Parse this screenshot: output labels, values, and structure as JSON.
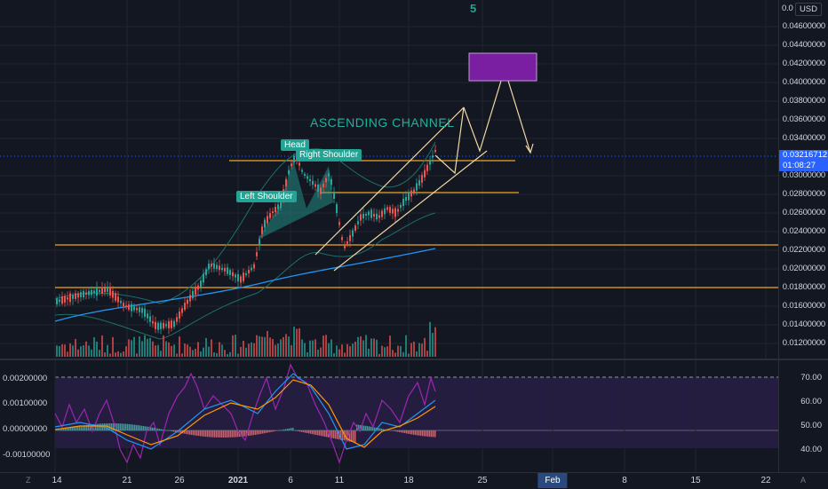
{
  "top_marker": "5",
  "annotations": {
    "channel_label": "ASCENDING CHANNEL",
    "head": "Head",
    "left_shoulder": "Left Shoulder",
    "right_shoulder": "Right Shoulder"
  },
  "price_axis": {
    "currency_button": "USD",
    "top_label": "0.0",
    "labels": [
      "0.04600000",
      "0.04400000",
      "0.04200000",
      "0.04000000",
      "0.03800000",
      "0.03600000",
      "0.03400000",
      "0.03000000",
      "0.02800000",
      "0.02600000",
      "0.02400000",
      "0.02200000",
      "0.02000000",
      "0.01800000",
      "0.01600000",
      "0.01400000",
      "0.01200000"
    ],
    "current_price": "0.03216712",
    "countdown": "01:08:27"
  },
  "oscillator": {
    "left_labels": [
      "0.00200000",
      "0.00100000",
      "0.00000000",
      "-0.00100000"
    ],
    "right_labels": [
      "70.00",
      "60.00",
      "50.00",
      "40.00"
    ]
  },
  "time_axis": {
    "labels": [
      "14",
      "21",
      "26",
      "2021",
      "6",
      "11",
      "18",
      "25",
      "Feb",
      "8",
      "15",
      "22"
    ],
    "zoom_button": "Z",
    "auto_button": "A"
  },
  "colors": {
    "background": "#131722",
    "up_candle": "#26a69a",
    "down_candle": "#ef5350",
    "hline": "#f5a623",
    "channel": "#f0d9a0",
    "target_box": "#7b1fa2",
    "rsi": "#9c27b0",
    "ma_blue": "#2196f3",
    "accent": "#2962ff"
  }
}
